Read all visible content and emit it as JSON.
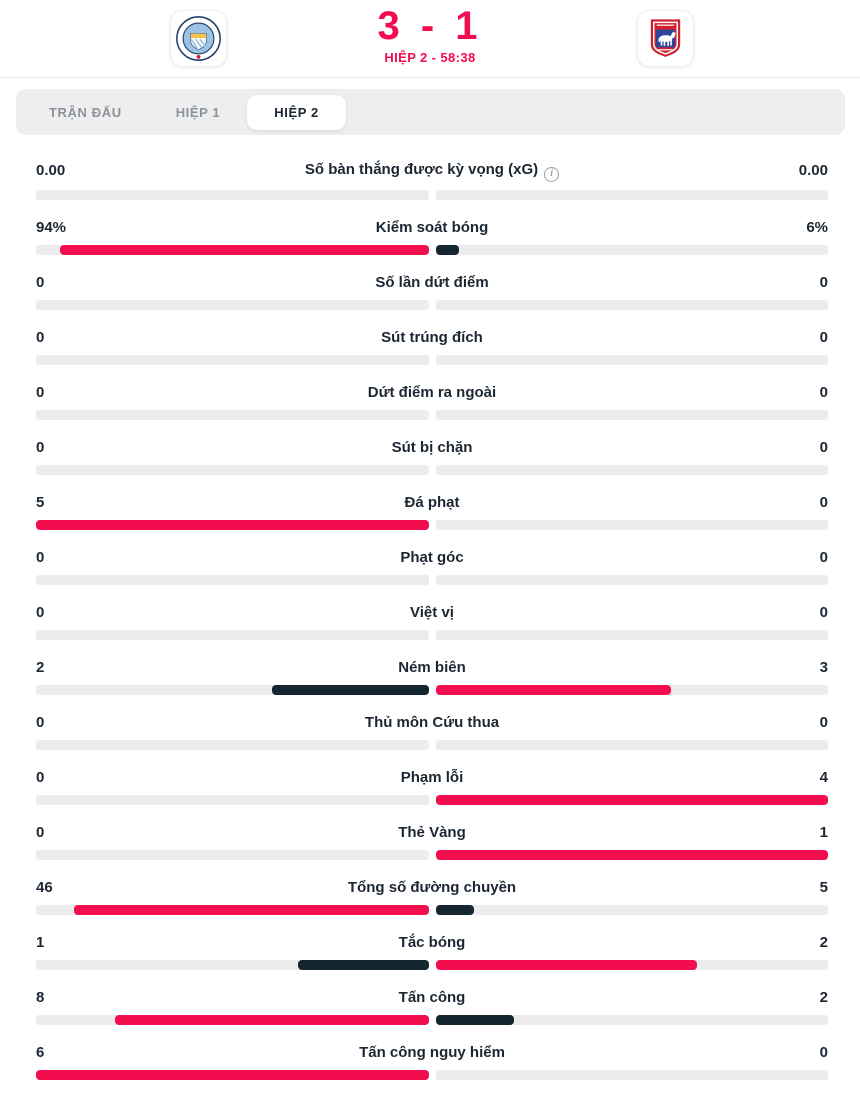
{
  "header": {
    "home_logo_icon": "manchester-city-crest",
    "away_logo_icon": "ipswich-town-crest",
    "score": "3 - 1",
    "status": "HIỆP 2 - 58:38"
  },
  "tabs": [
    {
      "id": "tran-dau",
      "label": "TRẬN ĐẤU",
      "active": false
    },
    {
      "id": "hiep-1",
      "label": "HIỆP 1",
      "active": false
    },
    {
      "id": "hiep-2",
      "label": "HIỆP 2",
      "active": true
    }
  ],
  "colors": {
    "highlight": "#f20d4e",
    "dark": "#142630",
    "track": "#ececec"
  },
  "stats": [
    {
      "label": "Số bàn thắng được kỳ vọng (xG)",
      "home": "0.00",
      "away": "0.00",
      "home_val": 0,
      "away_val": 0,
      "info": true
    },
    {
      "label": "Kiểm soát bóng",
      "home": "94%",
      "away": "6%",
      "home_val": 94,
      "away_val": 6
    },
    {
      "label": "Số lần dứt điểm",
      "home": "0",
      "away": "0",
      "home_val": 0,
      "away_val": 0
    },
    {
      "label": "Sút trúng đích",
      "home": "0",
      "away": "0",
      "home_val": 0,
      "away_val": 0
    },
    {
      "label": "Dứt điểm ra ngoài",
      "home": "0",
      "away": "0",
      "home_val": 0,
      "away_val": 0
    },
    {
      "label": "Sút bị chặn",
      "home": "0",
      "away": "0",
      "home_val": 0,
      "away_val": 0
    },
    {
      "label": "Đá phạt",
      "home": "5",
      "away": "0",
      "home_val": 5,
      "away_val": 0
    },
    {
      "label": "Phạt góc",
      "home": "0",
      "away": "0",
      "home_val": 0,
      "away_val": 0
    },
    {
      "label": "Việt vị",
      "home": "0",
      "away": "0",
      "home_val": 0,
      "away_val": 0
    },
    {
      "label": "Ném biên",
      "home": "2",
      "away": "3",
      "home_val": 2,
      "away_val": 3
    },
    {
      "label": "Thủ môn Cứu thua",
      "home": "0",
      "away": "0",
      "home_val": 0,
      "away_val": 0
    },
    {
      "label": "Phạm lỗi",
      "home": "0",
      "away": "4",
      "home_val": 0,
      "away_val": 4
    },
    {
      "label": "Thẻ Vàng",
      "home": "0",
      "away": "1",
      "home_val": 0,
      "away_val": 1
    },
    {
      "label": "Tổng số đường chuyền",
      "home": "46",
      "away": "5",
      "home_val": 46,
      "away_val": 5
    },
    {
      "label": "Tắc bóng",
      "home": "1",
      "away": "2",
      "home_val": 1,
      "away_val": 2
    },
    {
      "label": "Tấn công",
      "home": "8",
      "away": "2",
      "home_val": 8,
      "away_val": 2
    },
    {
      "label": "Tấn công nguy hiểm",
      "home": "6",
      "away": "0",
      "home_val": 6,
      "away_val": 0
    }
  ]
}
